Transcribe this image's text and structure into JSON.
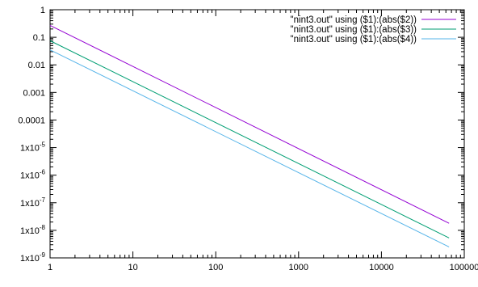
{
  "chart_data": {
    "type": "line",
    "x_scale": "log",
    "y_scale": "log",
    "xlim": [
      1,
      100000
    ],
    "ylim": [
      1e-09,
      1
    ],
    "x_ticks": [
      {
        "value": 1,
        "label": "1"
      },
      {
        "value": 10,
        "label": "10"
      },
      {
        "value": 100,
        "label": "100"
      },
      {
        "value": 1000,
        "label": "1000"
      },
      {
        "value": 10000,
        "label": "10000"
      },
      {
        "value": 100000,
        "label": "100000"
      }
    ],
    "y_ticks": [
      {
        "value": 1,
        "label": "1",
        "sup": ""
      },
      {
        "value": 0.1,
        "label": "0.1",
        "sup": ""
      },
      {
        "value": 0.01,
        "label": "0.01",
        "sup": ""
      },
      {
        "value": 0.001,
        "label": "0.001",
        "sup": ""
      },
      {
        "value": 0.0001,
        "label": "0.0001",
        "sup": ""
      },
      {
        "value": 1e-05,
        "label": "1x10",
        "sup": "-5"
      },
      {
        "value": 1e-06,
        "label": "1x10",
        "sup": "-6"
      },
      {
        "value": 1e-07,
        "label": "1x10",
        "sup": "-7"
      },
      {
        "value": 1e-08,
        "label": "1x10",
        "sup": "-8"
      },
      {
        "value": 1e-09,
        "label": "1x10",
        "sup": "-9"
      }
    ],
    "grid": false,
    "legend_position": "top-right",
    "series": [
      {
        "name": "\"nint3.out\" using ($1):(abs($2))",
        "color": "#9400d3",
        "x": [
          1,
          65536
        ],
        "y": [
          0.27,
          1.8e-08
        ]
      },
      {
        "name": "\"nint3.out\" using ($1):(abs($3))",
        "color": "#009e73",
        "x": [
          1,
          65536
        ],
        "y": [
          0.075,
          5.3e-09
        ]
      },
      {
        "name": "\"nint3.out\" using ($1):(abs($4))",
        "color": "#56b4e9",
        "x": [
          1,
          65536
        ],
        "y": [
          0.035,
          2.5e-09
        ]
      }
    ]
  }
}
